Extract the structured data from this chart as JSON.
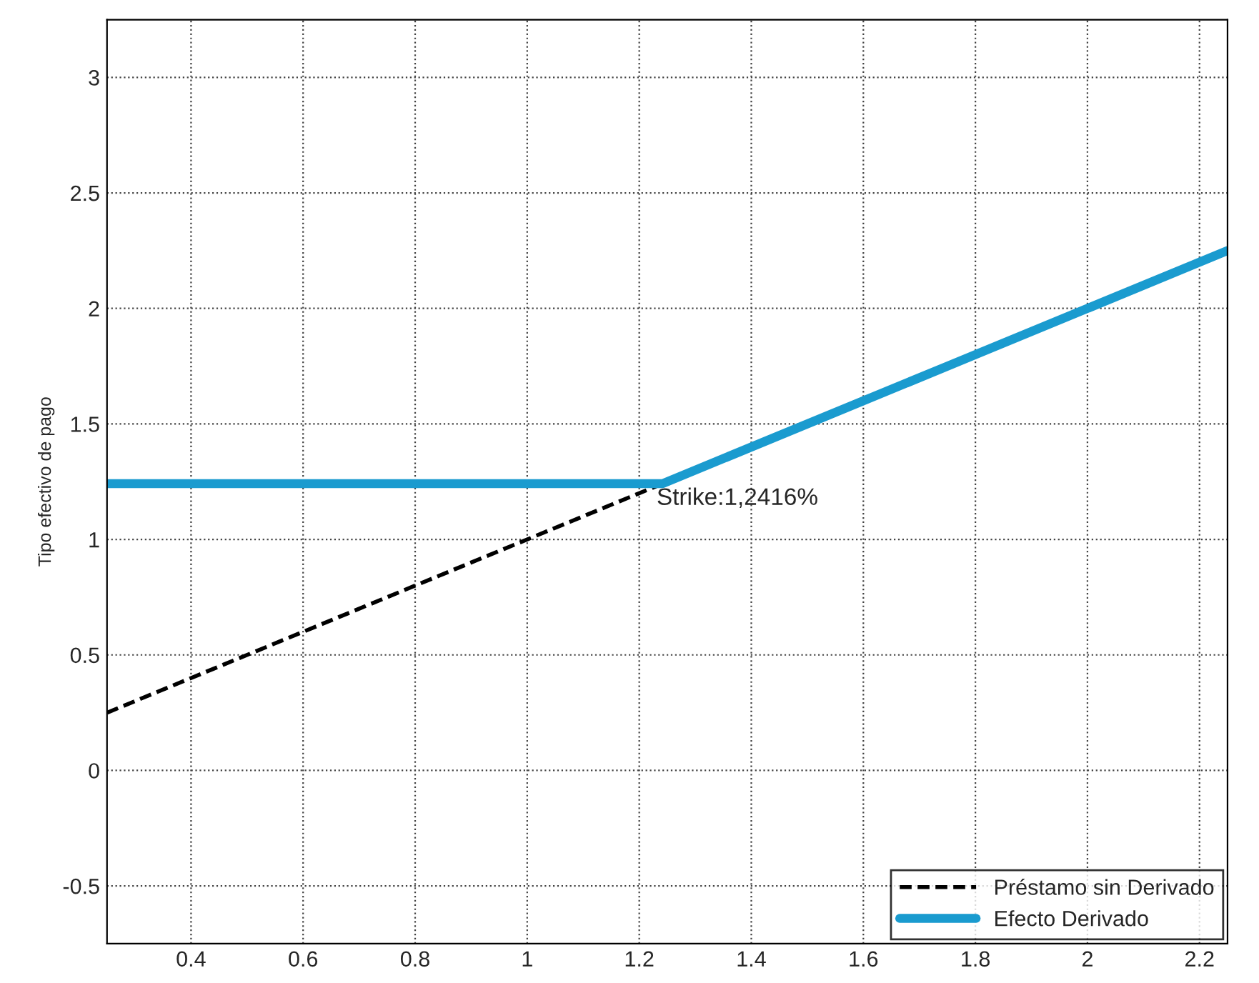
{
  "chart_data": {
    "type": "line",
    "ylabel": "Tipo efectivo de pago",
    "series": [
      {
        "name": "Préstamo sin Derivado",
        "color": "#000000",
        "line_style": "dashed",
        "x": [
          0.25,
          1.2416
        ],
        "values": [
          0.25,
          1.2416
        ]
      },
      {
        "name": "Efecto Derivado",
        "color": "#1a9bcf",
        "line_style": "solid",
        "x": [
          0.25,
          1.2416,
          2.25
        ],
        "values": [
          1.2416,
          1.2416,
          2.25
        ]
      }
    ],
    "annotations": [
      {
        "text": "Strike:1,2416%",
        "x": 1.2416,
        "y": 1.2416
      }
    ],
    "xlim": [
      0.25,
      2.25
    ],
    "xticks": [
      0.4,
      0.6,
      0.8,
      1,
      1.2,
      1.4,
      1.6,
      1.8,
      2,
      2.2
    ],
    "ylim": [
      -0.75,
      3.25
    ],
    "yticks": [
      -0.5,
      0,
      0.5,
      1,
      1.5,
      2,
      2.5,
      3
    ],
    "grid": true,
    "legend": "bottom right",
    "marker": "none"
  }
}
